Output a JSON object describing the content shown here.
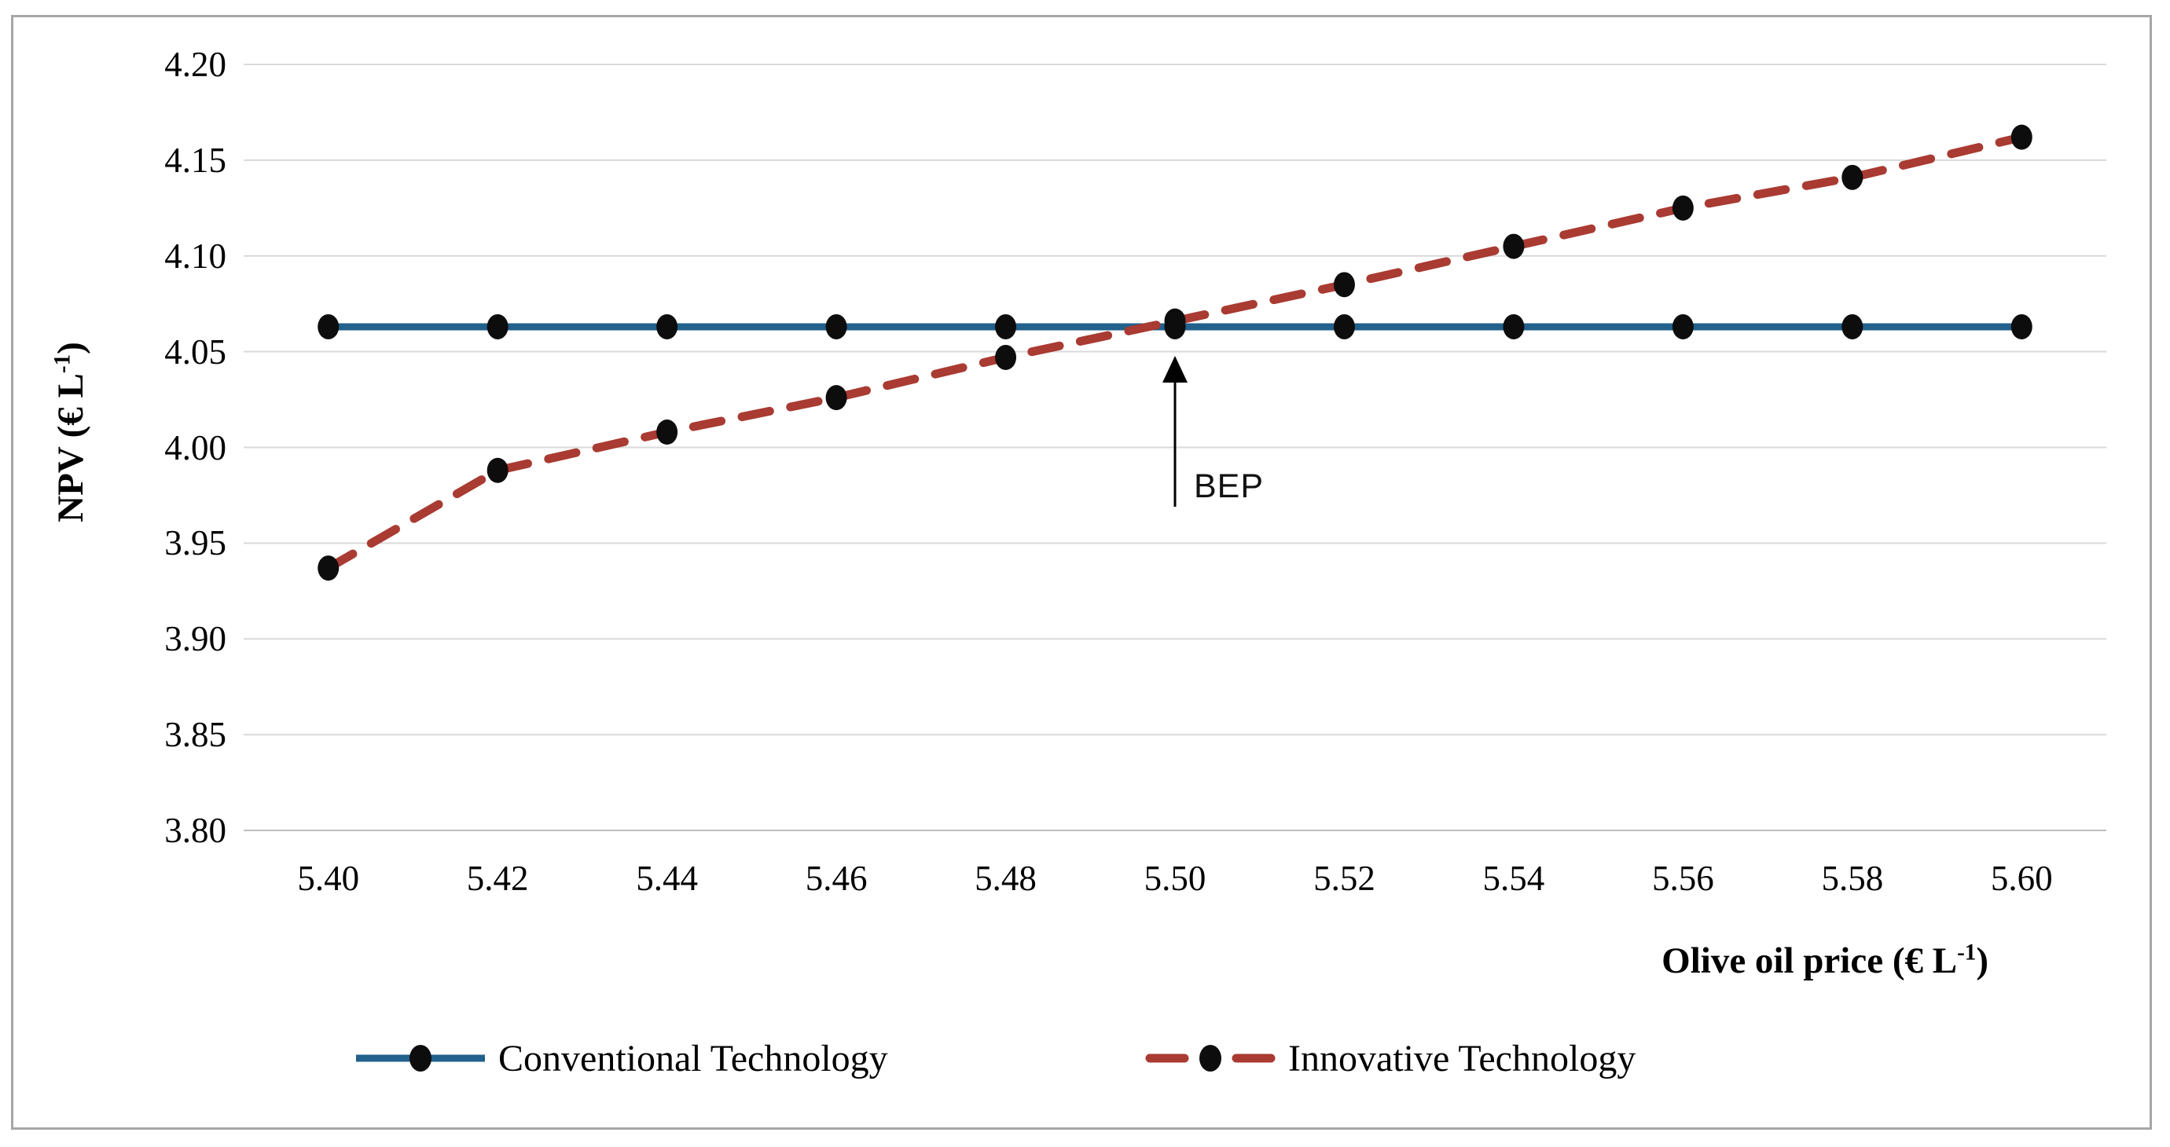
{
  "figure": {
    "border_color": "#a6a6a6",
    "background_color": "#ffffff",
    "gridline_color": "#d9d9d9",
    "axis_line_color": "#bfbfbf",
    "marker_color": "#0d0d0d"
  },
  "chart_data": {
    "type": "line",
    "categories": [
      "5.40",
      "5.42",
      "5.44",
      "5.46",
      "5.48",
      "5.50",
      "5.52",
      "5.54",
      "5.56",
      "5.58",
      "5.60"
    ],
    "series": [
      {
        "name": "Conventional Technology",
        "color": "#21618C",
        "style": "solid",
        "marker": "black-circle",
        "values": [
          4.063,
          4.063,
          4.063,
          4.063,
          4.063,
          4.063,
          4.063,
          4.063,
          4.063,
          4.063,
          4.063
        ]
      },
      {
        "name": "Innovative Technology",
        "color": "#A93B32",
        "style": "dashed",
        "marker": "black-circle",
        "values": [
          3.937,
          3.988,
          4.008,
          4.026,
          4.047,
          4.066,
          4.085,
          4.105,
          4.125,
          4.141,
          4.162
        ]
      }
    ],
    "xlabel": {
      "text": "Olive oil price (€ L",
      "sup": "-1",
      "close": ")"
    },
    "ylabel": {
      "text": "NPV  (€ L",
      "sup": "-1",
      "close": ")"
    },
    "ylim": [
      3.8,
      4.2
    ],
    "ytick_step": 0.05,
    "yticks": [
      "4.20",
      "4.15",
      "4.10",
      "4.05",
      "4.00",
      "3.95",
      "3.90",
      "3.85",
      "3.80"
    ],
    "grid": true,
    "legend_position": "bottom",
    "annotation": {
      "label": "BEP",
      "x_category": "5.50",
      "type": "up-arrow-at-intersection"
    }
  }
}
